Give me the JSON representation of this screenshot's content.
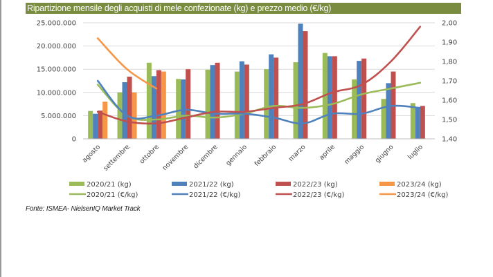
{
  "title": "Ripartizione mensile degli acquisti di mele confezionate (kg) e prezzo medio (€/kg)",
  "source": "Fonte: ISMEA- NielsenIQ Market Track",
  "colors": {
    "title_bg": "#7a8c40",
    "s2020": "#9bbb59",
    "s2021": "#4f81bd",
    "s2022": "#c0504d",
    "s2023": "#f79646",
    "grid": "#d9d9d9"
  },
  "chart_data": {
    "type": "bar+line",
    "title": "Ripartizione mensile degli acquisti di mele confezionate (kg) e prezzo medio (€/kg)",
    "categories": [
      "agosto",
      "settembre",
      "ottobre",
      "novembre",
      "dicembre",
      "gennaio",
      "febbraio",
      "marzo",
      "aprile",
      "maggio",
      "giugno",
      "luglio"
    ],
    "y_left": {
      "range": [
        0,
        25000000
      ],
      "ticks": [
        0,
        5000000,
        10000000,
        15000000,
        20000000,
        25000000
      ],
      "tick_labels": [
        "0",
        "5.000.000",
        "10.000.000",
        "15.000.000",
        "20.000.000",
        "25.000.000"
      ]
    },
    "y_right": {
      "range": [
        1.4,
        2.0
      ],
      "ticks": [
        1.4,
        1.5,
        1.6,
        1.7,
        1.8,
        1.9,
        2.0
      ],
      "tick_labels": [
        "1,40",
        "1,50",
        "1,60",
        "1,70",
        "1,80",
        "1,90",
        "2,00"
      ]
    },
    "grid": true,
    "legend_position": "bottom",
    "bar_series": [
      {
        "name": "2020/21 (kg)",
        "color_key": "s2020",
        "values": [
          6000000,
          10000000,
          16400000,
          12900000,
          14900000,
          14500000,
          15000000,
          16500000,
          18500000,
          12800000,
          8600000,
          7700000
        ]
      },
      {
        "name": "2021/22 (kg)",
        "color_key": "s2021",
        "values": [
          5400000,
          12200000,
          13500000,
          12800000,
          15900000,
          16700000,
          18200000,
          24800000,
          17800000,
          16800000,
          12000000,
          6800000
        ]
      },
      {
        "name": "2022/23 (kg)",
        "color_key": "s2022",
        "values": [
          6100000,
          13400000,
          14800000,
          15000000,
          16400000,
          16000000,
          17500000,
          23200000,
          17800000,
          17300000,
          14500000,
          7100000
        ]
      },
      {
        "name": "2023/24 (kg)",
        "color_key": "s2023",
        "values": [
          8000000,
          10000000,
          14500000,
          null,
          null,
          null,
          null,
          null,
          null,
          null,
          null,
          null
        ]
      }
    ],
    "line_series": [
      {
        "name": "2020/21 (€/kg)",
        "color_key": "s2020",
        "values": [
          1.68,
          1.52,
          1.5,
          1.52,
          1.51,
          1.53,
          1.57,
          1.56,
          1.58,
          1.63,
          1.66,
          1.69
        ]
      },
      {
        "name": "2021/22 (€/kg)",
        "color_key": "s2021",
        "values": [
          1.7,
          1.52,
          1.52,
          1.55,
          1.53,
          1.53,
          1.51,
          1.48,
          1.53,
          1.53,
          1.57,
          1.56
        ]
      },
      {
        "name": "2022/23 (€/kg)",
        "color_key": "s2022",
        "values": [
          1.54,
          1.49,
          1.48,
          1.51,
          1.54,
          1.54,
          1.56,
          1.58,
          1.64,
          1.68,
          1.8,
          1.98
        ]
      },
      {
        "name": "2023/24 (€/kg)",
        "color_key": "s2023",
        "values": [
          1.92,
          1.76,
          1.66,
          null,
          null,
          null,
          null,
          null,
          null,
          null,
          null,
          null
        ]
      }
    ],
    "legend": [
      {
        "label": "2020/21 (kg)",
        "kind": "bar",
        "color_key": "s2020"
      },
      {
        "label": "2021/22 (kg)",
        "kind": "bar",
        "color_key": "s2021"
      },
      {
        "label": "2022/23 (kg)",
        "kind": "bar",
        "color_key": "s2022"
      },
      {
        "label": "2023/24 (kg)",
        "kind": "bar",
        "color_key": "s2023"
      },
      {
        "label": "2020/21 (€/kg)",
        "kind": "line",
        "color_key": "s2020"
      },
      {
        "label": "2021/22 (€/kg)",
        "kind": "line",
        "color_key": "s2021"
      },
      {
        "label": "2022/23 (€/kg)",
        "kind": "line",
        "color_key": "s2022"
      },
      {
        "label": "2023/24 (€/kg)",
        "kind": "line",
        "color_key": "s2023"
      }
    ]
  }
}
